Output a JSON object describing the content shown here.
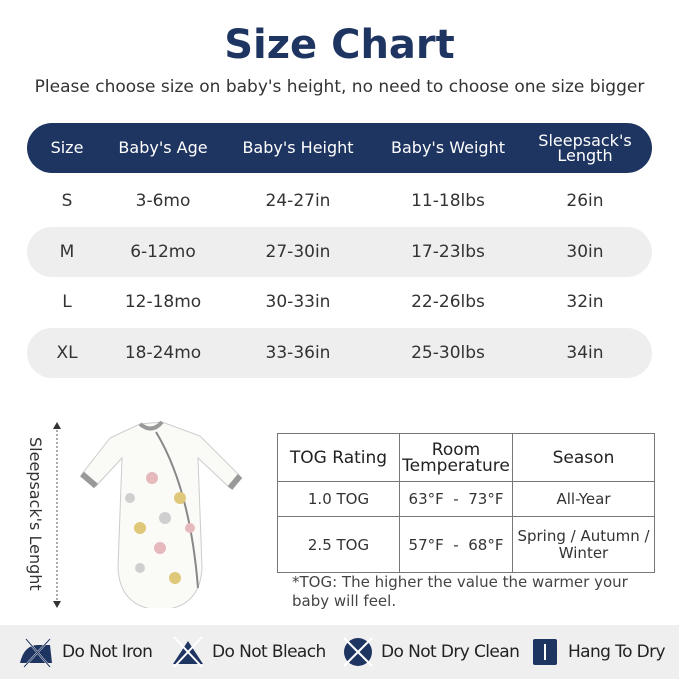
{
  "title": "Size Chart",
  "subtitle": "Please choose size on baby's height, no need to choose one size bigger",
  "size_table": {
    "headers": [
      "Size",
      "Baby's Age",
      "Baby's Height",
      "Baby's Weight",
      "Sleepsack's Length"
    ],
    "rows": [
      [
        "S",
        "3-6mo",
        "24-27in",
        "11-18lbs",
        "26in"
      ],
      [
        "M",
        "6-12mo",
        "27-30in",
        "17-23lbs",
        "30in"
      ],
      [
        "L",
        "12-18mo",
        "30-33in",
        "22-26lbs",
        "32in"
      ],
      [
        "XL",
        "18-24mo",
        "33-36in",
        "25-30lbs",
        "34in"
      ]
    ]
  },
  "length_label": "Sleepsack's Lenght",
  "tog_table": {
    "headers": [
      "TOG Rating",
      "Room Temperature",
      "Season"
    ],
    "rows": [
      [
        "1.0 TOG",
        "63°F  -  73°F",
        "All-Year"
      ],
      [
        "2.5 TOG",
        "57°F  -  68°F",
        "Spring / Autumn / Winter"
      ]
    ]
  },
  "tog_note": "*TOG: The higher the value the warmer your baby will feel.",
  "care": [
    {
      "icon": "do-not-iron-icon",
      "label": "Do Not Iron"
    },
    {
      "icon": "do-not-bleach-icon",
      "label": "Do Not Bleach"
    },
    {
      "icon": "do-not-dry-clean-icon",
      "label": "Do Not Dry Clean"
    },
    {
      "icon": "hang-to-dry-icon",
      "label": "Hang To Dry"
    }
  ],
  "colors": {
    "navy": "#1f3561",
    "band": "#eeeeee"
  }
}
